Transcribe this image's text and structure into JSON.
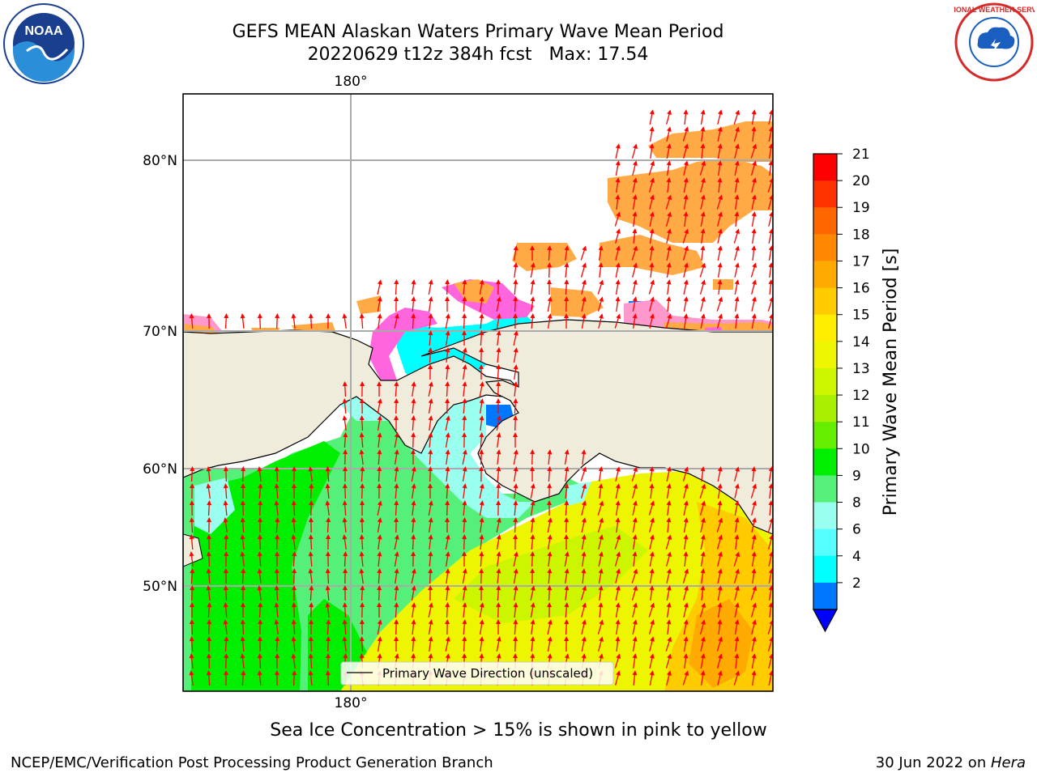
{
  "title": {
    "line1": "GEFS MEAN Alaskan Waters Primary Wave Mean Period",
    "run": "20220629 t12z 384h fcst",
    "max_label": "Max: 17.54"
  },
  "map": {
    "lon_labels": [
      "180°"
    ],
    "lat_labels": [
      "80°N",
      "70°N",
      "60°N",
      "50°N"
    ],
    "legend_label": "Primary Wave Direction (unscaled)",
    "land_color": "#efecdc",
    "arrow_color": "#ff0000"
  },
  "colorbar": {
    "label": "Primary Wave Mean Period [s]",
    "ticks": [
      "21",
      "20",
      "19",
      "18",
      "17",
      "16",
      "15",
      "14",
      "13",
      "12",
      "11",
      "10",
      "9",
      "8",
      "6",
      "4",
      "2"
    ],
    "colors": [
      "#ff0000",
      "#ff3300",
      "#ff6600",
      "#ff8800",
      "#ffaa00",
      "#ffcc00",
      "#ffee00",
      "#eef500",
      "#ccf500",
      "#aaef00",
      "#66ee00",
      "#00ee00",
      "#55f07a",
      "#99ffee",
      "#55ffff",
      "#00ffff",
      "#0077ff"
    ],
    "extend_color": "#0000ff"
  },
  "footnote": "Sea Ice Concentration > 15% is shown in pink to yellow",
  "footer": {
    "org": "NCEP/EMC/Verification Post Processing Product Generation Branch",
    "date": "30 Jun 2022 on ",
    "host": "Hera"
  },
  "logos": {
    "noaa_text": "NOAA",
    "nws_text": "NATIONAL WEATHER SERVICE"
  }
}
